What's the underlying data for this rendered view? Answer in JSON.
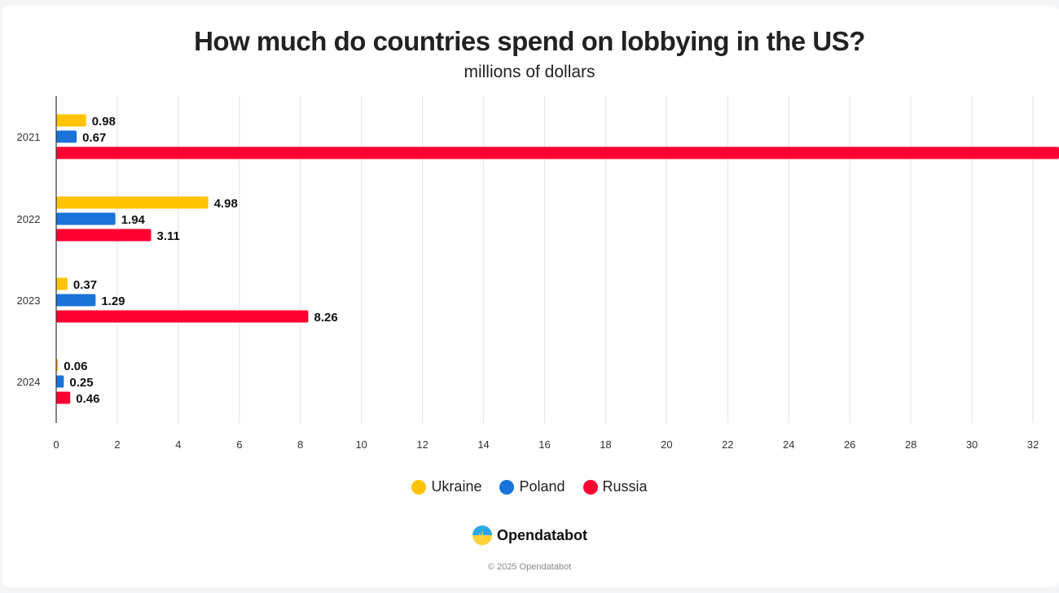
{
  "header": {
    "title": "How much do countries spend on lobbying in the US?",
    "subtitle": "millions of dollars"
  },
  "chart_data": {
    "type": "bar",
    "orientation": "horizontal",
    "title": "How much do countries spend on lobbying in the US?",
    "subtitle": "millions of dollars",
    "xlabel": "",
    "ylabel": "",
    "categories": [
      "2021",
      "2022",
      "2023",
      "2024"
    ],
    "series": [
      {
        "name": "Ukraine",
        "color": "#FFC300",
        "values": [
          0.98,
          4.98,
          0.37,
          0.06
        ],
        "labels": [
          "0.98",
          "4.98",
          "0.37",
          "0.06"
        ]
      },
      {
        "name": "Poland",
        "color": "#1A73D9",
        "values": [
          0.67,
          1.94,
          1.29,
          0.25
        ],
        "labels": [
          "0.67",
          "1.94",
          "1.29",
          "0.25"
        ]
      },
      {
        "name": "Russia",
        "color": "#FF0033",
        "values": [
          33,
          3.11,
          8.26,
          0.46
        ],
        "labels": [
          "",
          "3.11",
          "8.26",
          "0.46"
        ]
      }
    ],
    "note": "Russia 2021 bar extends beyond the visible axis range; its label is cut off",
    "xlim": [
      0,
      32.8
    ],
    "xticks": [
      0,
      2,
      4,
      6,
      8,
      10,
      12,
      14,
      16,
      18,
      20,
      22,
      24,
      26,
      28,
      30,
      32
    ],
    "grid": true,
    "legend_position": "bottom-center"
  },
  "legend": {
    "items": [
      {
        "label": "Ukraine",
        "color": "#FFC300"
      },
      {
        "label": "Poland",
        "color": "#1A73D9"
      },
      {
        "label": "Russia",
        "color": "#FF0033"
      }
    ]
  },
  "footer": {
    "brand": "Opendatabot",
    "copyright": "© 2025 Opendatabot"
  }
}
